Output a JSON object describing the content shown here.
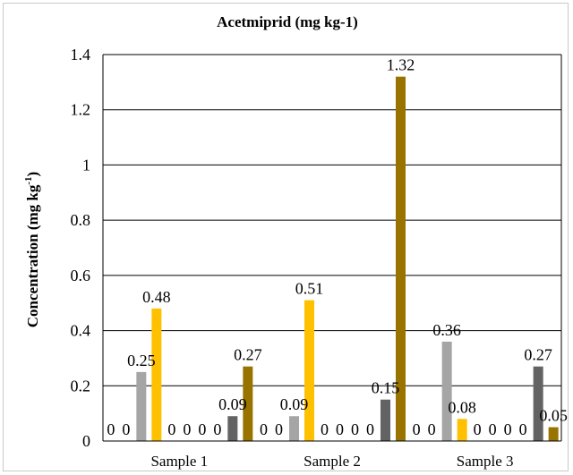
{
  "chart_data": {
    "type": "bar",
    "title": "Acetmiprid (mg kg-1)",
    "xlabel": "",
    "ylabel": "Concentration (mg kg",
    "ylabel_sup": "-1",
    "ylabel_close": ")",
    "ylim": [
      0,
      1.4
    ],
    "yticks": [
      "0",
      "0.2",
      "0.4",
      "0.6",
      "0.8",
      "1",
      "1.2",
      "1.4"
    ],
    "grid": true,
    "legend": "none",
    "categories": [
      "Sample 1",
      "Sample 2",
      "Sample 3"
    ],
    "series": [
      {
        "values": [
          0,
          0,
          0
        ],
        "labels": [
          "0",
          "0",
          "0"
        ],
        "color": "#4472c4"
      },
      {
        "values": [
          0,
          0,
          0
        ],
        "labels": [
          "0",
          "0",
          "0"
        ],
        "color": "#ed7d31"
      },
      {
        "values": [
          0.25,
          0.09,
          0.36
        ],
        "labels": [
          "0.25",
          "0.09",
          "0.36"
        ],
        "color": "#a5a5a5"
      },
      {
        "values": [
          0.48,
          0.51,
          0.08
        ],
        "labels": [
          "0.48",
          "0.51",
          "0.08"
        ],
        "color": "#ffc000"
      },
      {
        "values": [
          0,
          0,
          0
        ],
        "labels": [
          "0",
          "0",
          "0"
        ],
        "color": "#5b9bd5"
      },
      {
        "values": [
          0,
          0,
          0
        ],
        "labels": [
          "0",
          "0",
          "0"
        ],
        "color": "#70ad47"
      },
      {
        "values": [
          0,
          0,
          0
        ],
        "labels": [
          "0",
          "0",
          "0"
        ],
        "color": "#264478"
      },
      {
        "values": [
          0,
          0,
          0
        ],
        "labels": [
          "0",
          "0",
          "0"
        ],
        "color": "#9e480e"
      },
      {
        "values": [
          0.09,
          0.15,
          0.27
        ],
        "labels": [
          "0.09",
          "0.15",
          "0.27"
        ],
        "color": "#636363"
      },
      {
        "values": [
          0.27,
          1.32,
          0.05
        ],
        "labels": [
          "0.27",
          "1.32",
          "0.05"
        ],
        "color": "#997300"
      }
    ]
  }
}
